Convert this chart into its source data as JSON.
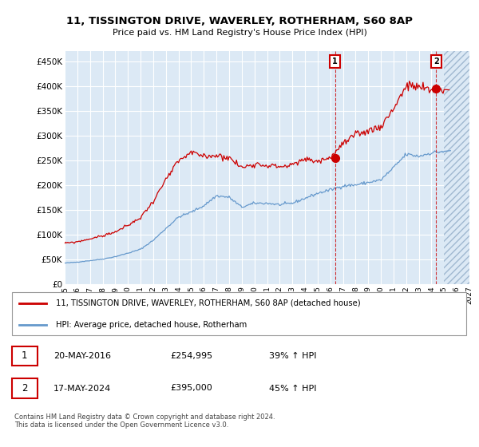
{
  "title": "11, TISSINGTON DRIVE, WAVERLEY, ROTHERHAM, S60 8AP",
  "subtitle": "Price paid vs. HM Land Registry's House Price Index (HPI)",
  "ylim": [
    0,
    470000
  ],
  "yticks": [
    0,
    50000,
    100000,
    150000,
    200000,
    250000,
    300000,
    350000,
    400000,
    450000
  ],
  "ytick_labels": [
    "£0",
    "£50K",
    "£100K",
    "£150K",
    "£200K",
    "£250K",
    "£300K",
    "£350K",
    "£400K",
    "£450K"
  ],
  "bg_color": "#dce9f5",
  "grid_color": "#ffffff",
  "line1_color": "#cc0000",
  "line2_color": "#6699cc",
  "ann1_x": 2016.38,
  "ann1_y": 254995,
  "ann2_x": 2024.38,
  "ann2_y": 395000,
  "annotation1": {
    "label": "1",
    "date": "20-MAY-2016",
    "price": "£254,995",
    "pct": "39% ↑ HPI"
  },
  "annotation2": {
    "label": "2",
    "date": "17-MAY-2024",
    "price": "£395,000",
    "pct": "45% ↑ HPI"
  },
  "legend1": "11, TISSINGTON DRIVE, WAVERLEY, ROTHERHAM, S60 8AP (detached house)",
  "legend2": "HPI: Average price, detached house, Rotherham",
  "footer": "Contains HM Land Registry data © Crown copyright and database right 2024.\nThis data is licensed under the Open Government Licence v3.0.",
  "xlim": [
    1995,
    2027
  ],
  "hatch_start": 2025.0,
  "xtick_years": [
    1995,
    1996,
    1997,
    1998,
    1999,
    2000,
    2001,
    2002,
    2003,
    2004,
    2005,
    2006,
    2007,
    2008,
    2009,
    2010,
    2011,
    2012,
    2013,
    2014,
    2015,
    2016,
    2017,
    2018,
    2019,
    2020,
    2021,
    2022,
    2023,
    2024,
    2025,
    2026,
    2027
  ]
}
